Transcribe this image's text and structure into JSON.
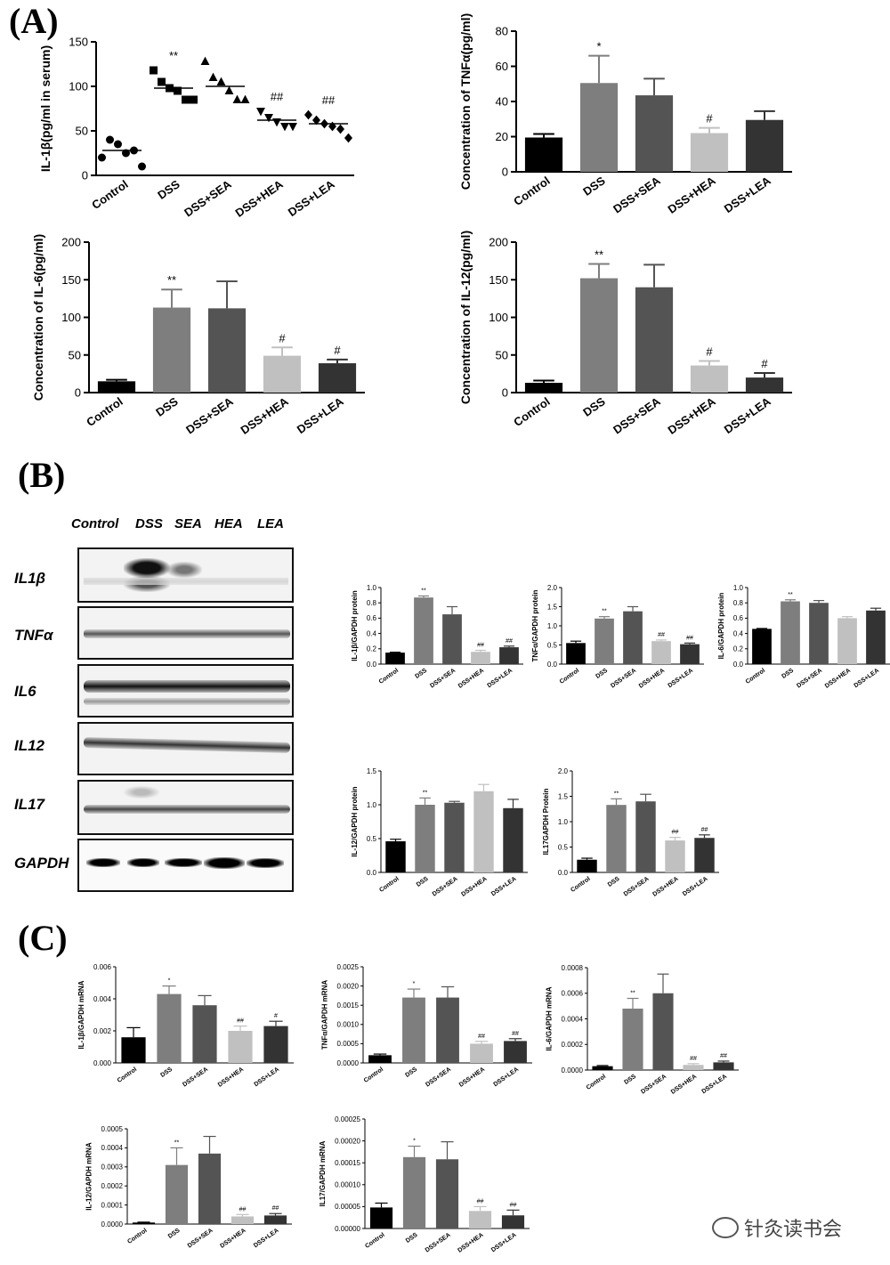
{
  "panel_labels": {
    "A": "(A)",
    "B": "(B)",
    "C": "(C)"
  },
  "blot": {
    "lanes": [
      "Control",
      "DSS",
      "SEA",
      "HEA",
      "LEA"
    ],
    "rows": [
      "IL1β",
      "TNFα",
      "IL6",
      "IL12",
      "IL17",
      "GAPDH"
    ]
  },
  "watermark": "针灸读书会",
  "chart_data": [
    {
      "id": "A1",
      "type": "scatter",
      "ylabel": "IL-1β(pg/ml in serum)",
      "ylim": [
        0,
        150
      ],
      "yticks": [
        "0",
        "50",
        "100",
        "150"
      ],
      "categories": [
        "Control",
        "DSS",
        "DSS+SEA",
        "DSS+HEA",
        "DSS+LEA"
      ],
      "points": [
        [
          20,
          40,
          35,
          25,
          28,
          10
        ],
        [
          118,
          105,
          98,
          95,
          85,
          85
        ],
        [
          128,
          110,
          105,
          95,
          85,
          85
        ],
        [
          72,
          65,
          60,
          55,
          55
        ],
        [
          68,
          62,
          58,
          55,
          52,
          42
        ]
      ],
      "markers": [
        "circle",
        "square",
        "triangle",
        "invtriangle",
        "diamond"
      ],
      "means": [
        28,
        98,
        100,
        62,
        58
      ],
      "annotations": [
        "",
        "**",
        "",
        "##",
        "##"
      ]
    },
    {
      "id": "A2",
      "type": "bar",
      "ylabel": "Concentration of TNFα(pg/ml)",
      "ylim": [
        0,
        80
      ],
      "yticks": [
        "0",
        "20",
        "40",
        "60",
        "80"
      ],
      "categories": [
        "Control",
        "DSS",
        "DSS+SEA",
        "DSS+HEA",
        "DSS+LEA"
      ],
      "values": [
        19.5,
        50.5,
        43.5,
        22,
        29.5
      ],
      "errors": [
        2,
        15.5,
        9.5,
        3,
        5
      ],
      "annotations": [
        "",
        "*",
        "",
        "#",
        ""
      ]
    },
    {
      "id": "A3",
      "type": "bar",
      "ylabel": "Concentration of IL-6(pg/ml)",
      "ylim": [
        0,
        200
      ],
      "yticks": [
        "0",
        "50",
        "100",
        "150",
        "200"
      ],
      "categories": [
        "Control",
        "DSS",
        "DSS+SEA",
        "DSS+HEA",
        "DSS+LEA"
      ],
      "values": [
        15,
        113,
        112,
        49,
        39
      ],
      "errors": [
        2,
        24,
        36,
        11,
        5
      ],
      "annotations": [
        "",
        "**",
        "",
        "#",
        "#"
      ]
    },
    {
      "id": "A4",
      "type": "bar",
      "ylabel": "Concentration of IL-12(pg/ml)",
      "ylim": [
        0,
        200
      ],
      "yticks": [
        "0",
        "50",
        "100",
        "150",
        "200"
      ],
      "categories": [
        "Control",
        "DSS",
        "DSS+SEA",
        "DSS+HEA",
        "DSS+LEA"
      ],
      "values": [
        13,
        152,
        140,
        36,
        20
      ],
      "errors": [
        3,
        19,
        30,
        6,
        6
      ],
      "annotations": [
        "",
        "**",
        "",
        "#",
        "#"
      ]
    },
    {
      "id": "B1",
      "type": "bar",
      "ylabel": "IL-1β/GAPDH protein",
      "ylim": [
        0,
        1.0
      ],
      "yticks": [
        "0.0",
        "0.2",
        "0.4",
        "0.6",
        "0.8",
        "1.0"
      ],
      "categories": [
        "Control",
        "DSS",
        "DSS+SEA",
        "DSS+HEA",
        "DSS+LEA"
      ],
      "values": [
        0.15,
        0.87,
        0.65,
        0.16,
        0.22
      ],
      "errors": [
        0.005,
        0.02,
        0.1,
        0.02,
        0.015
      ],
      "annotations": [
        "",
        "**",
        "",
        "##",
        "##"
      ]
    },
    {
      "id": "B2",
      "type": "bar",
      "ylabel": "TNFα/GAPDH protein",
      "ylim": [
        0,
        2.0
      ],
      "yticks": [
        "0.0",
        "0.5",
        "1.0",
        "1.5",
        "2.0"
      ],
      "categories": [
        "Control",
        "DSS",
        "DSS+SEA",
        "DSS+HEA",
        "DSS+LEA"
      ],
      "values": [
        0.55,
        1.19,
        1.38,
        0.6,
        0.52
      ],
      "errors": [
        0.05,
        0.05,
        0.12,
        0.03,
        0.03
      ],
      "annotations": [
        "",
        "**",
        "",
        "##",
        "##"
      ]
    },
    {
      "id": "B3",
      "type": "bar",
      "ylabel": "IL-6/GAPDH protein",
      "ylim": [
        0,
        1.0
      ],
      "yticks": [
        "0.0",
        "0.2",
        "0.4",
        "0.6",
        "0.8",
        "1.0"
      ],
      "categories": [
        "Control",
        "DSS",
        "DSS+SEA",
        "DSS+HEA",
        "DSS+LEA"
      ],
      "values": [
        0.46,
        0.82,
        0.8,
        0.6,
        0.7
      ],
      "errors": [
        0.005,
        0.02,
        0.03,
        0.02,
        0.03
      ],
      "annotations": [
        "",
        "**",
        "",
        "",
        ""
      ]
    },
    {
      "id": "B4",
      "type": "bar",
      "ylabel": "IL-12/GAPDH protein",
      "ylim": [
        0,
        1.5
      ],
      "yticks": [
        "0.0",
        "0.5",
        "1.0",
        "1.5"
      ],
      "categories": [
        "Control",
        "DSS",
        "DSS+SEA",
        "DSS+HEA",
        "DSS+LEA"
      ],
      "values": [
        0.46,
        1.0,
        1.03,
        1.2,
        0.95
      ],
      "errors": [
        0.03,
        0.1,
        0.02,
        0.1,
        0.13
      ],
      "annotations": [
        "",
        "**",
        "",
        "",
        ""
      ]
    },
    {
      "id": "B5",
      "type": "bar",
      "ylabel": "IL17GAPDH Protein",
      "ylim": [
        0,
        2.0
      ],
      "yticks": [
        "0.0",
        "0.5",
        "1.0",
        "1.5",
        "2.0"
      ],
      "categories": [
        "Control",
        "DSS",
        "DSS+SEA",
        "DSS+HEA",
        "DSS+LEA"
      ],
      "values": [
        0.25,
        1.33,
        1.4,
        0.63,
        0.68
      ],
      "errors": [
        0.03,
        0.12,
        0.14,
        0.06,
        0.06
      ],
      "annotations": [
        "",
        "**",
        "",
        "##",
        "##"
      ]
    },
    {
      "id": "C1",
      "type": "bar",
      "ylabel": "IL-1β/GAPDH mRNA",
      "ylim": [
        0,
        0.006
      ],
      "yticks": [
        "0.000",
        "0.002",
        "0.004",
        "0.006"
      ],
      "categories": [
        "Control",
        "DSS",
        "DSS+SEA",
        "DSS+HEA",
        "DSS+LEA"
      ],
      "values": [
        0.0016,
        0.0043,
        0.0036,
        0.002,
        0.0023
      ],
      "errors": [
        0.0006,
        0.0005,
        0.0006,
        0.0003,
        0.0003
      ],
      "annotations": [
        "",
        "*",
        "",
        "##",
        "#"
      ]
    },
    {
      "id": "C2",
      "type": "bar",
      "ylabel": "TNFα/GAPDH mRNA",
      "ylim": [
        0,
        0.0025
      ],
      "yticks": [
        "0.0000",
        "0.0005",
        "0.0010",
        "0.0015",
        "0.0020",
        "0.0025"
      ],
      "categories": [
        "Control",
        "DSS",
        "DSS+SEA",
        "DSS+HEA",
        "DSS+LEA"
      ],
      "values": [
        0.0002,
        0.0017,
        0.0017,
        0.0005,
        0.00057
      ],
      "errors": [
        3e-05,
        0.00022,
        0.00028,
        6e-05,
        6e-05
      ],
      "annotations": [
        "",
        "*",
        "",
        "##",
        "##"
      ]
    },
    {
      "id": "C3",
      "type": "bar",
      "ylabel": "IL-6/GAPDH mRNA",
      "ylim": [
        0,
        0.0008
      ],
      "yticks": [
        "0.0000",
        "0.0002",
        "0.0004",
        "0.0006",
        "0.0008"
      ],
      "categories": [
        "Control",
        "DSS",
        "DSS+SEA",
        "DSS+HEA",
        "DSS+LEA"
      ],
      "values": [
        3e-05,
        0.00048,
        0.0006,
        4e-05,
        6e-05
      ],
      "errors": [
        5e-06,
        8e-05,
        0.00015,
        1e-05,
        1e-05
      ],
      "annotations": [
        "",
        "**",
        "",
        "##",
        "##"
      ]
    },
    {
      "id": "C4",
      "type": "bar",
      "ylabel": "IL-12/GAPDH mRNA",
      "ylim": [
        0,
        0.0005
      ],
      "yticks": [
        "0.0000",
        "0.0001",
        "0.0002",
        "0.0003",
        "0.0004",
        "0.0005"
      ],
      "categories": [
        "Control",
        "DSS",
        "DSS+SEA",
        "DSS+HEA",
        "DSS+LEA"
      ],
      "values": [
        8e-06,
        0.00031,
        0.00037,
        4e-05,
        4.5e-05
      ],
      "errors": [
        2e-06,
        9e-05,
        9e-05,
        1e-05,
        1e-05
      ],
      "annotations": [
        "",
        "**",
        "",
        "##",
        "##"
      ]
    },
    {
      "id": "C5",
      "type": "bar",
      "ylabel": "IL17/GAPDH mRNA",
      "ylim": [
        0,
        0.00025
      ],
      "yticks": [
        "0.00000",
        "0.00005",
        "0.00010",
        "0.00015",
        "0.00020",
        "0.00025"
      ],
      "categories": [
        "Control",
        "DSS",
        "DSS+SEA",
        "DSS+HEA",
        "DSS+LEA"
      ],
      "values": [
        4.8e-05,
        0.000163,
        0.000158,
        4e-05,
        3e-05
      ],
      "errors": [
        1e-05,
        2.5e-05,
        4e-05,
        1e-05,
        1.2e-05
      ],
      "annotations": [
        "",
        "*",
        "",
        "##",
        "##"
      ]
    }
  ]
}
